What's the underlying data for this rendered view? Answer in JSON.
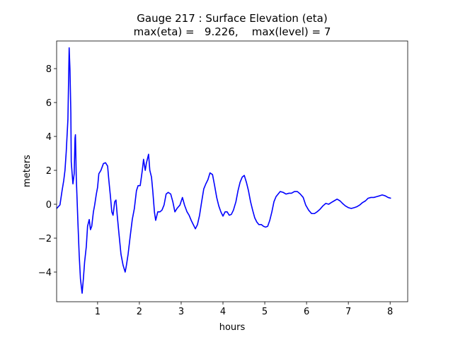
{
  "chart_data": {
    "type": "line",
    "title": "Gauge 217 : Surface Elevation (eta)",
    "subtitle": "max(eta) =   9.226,    max(level) = 7",
    "x_label": "hours",
    "y_label": "meters",
    "xlim": [
      0.02,
      8.42
    ],
    "ylim": [
      -5.75,
      9.63
    ],
    "xticks": [
      1,
      2,
      3,
      4,
      5,
      6,
      7,
      8
    ],
    "yticks": [
      {
        "value": -4,
        "label": "−4"
      },
      {
        "value": -2,
        "label": "−2"
      },
      0,
      2,
      4,
      6,
      8
    ],
    "grid": false,
    "series": [
      {
        "color": "#0000ff",
        "x": [
          0.02,
          0.1,
          0.15,
          0.19,
          0.22,
          0.25,
          0.29,
          0.32,
          0.34,
          0.36,
          0.37,
          0.41,
          0.44,
          0.46,
          0.47,
          0.49,
          0.53,
          0.56,
          0.59,
          0.63,
          0.66,
          0.69,
          0.73,
          0.76,
          0.8,
          0.83,
          0.86,
          0.9,
          0.93,
          0.97,
          1.0,
          1.03,
          1.08,
          1.14,
          1.19,
          1.24,
          1.27,
          1.31,
          1.34,
          1.37,
          1.41,
          1.44,
          1.47,
          1.51,
          1.56,
          1.61,
          1.66,
          1.69,
          1.73,
          1.78,
          1.83,
          1.88,
          1.93,
          1.97,
          2.02,
          2.07,
          2.1,
          2.14,
          2.17,
          2.22,
          2.25,
          2.29,
          2.32,
          2.36,
          2.39,
          2.44,
          2.49,
          2.54,
          2.59,
          2.64,
          2.69,
          2.75,
          2.8,
          2.85,
          2.9,
          2.97,
          3.03,
          3.08,
          3.14,
          3.19,
          3.24,
          3.29,
          3.34,
          3.39,
          3.44,
          3.49,
          3.54,
          3.59,
          3.64,
          3.69,
          3.75,
          3.8,
          3.85,
          3.9,
          3.95,
          4.0,
          4.05,
          4.1,
          4.15,
          4.2,
          4.25,
          4.31,
          4.36,
          4.41,
          4.46,
          4.51,
          4.56,
          4.61,
          4.66,
          4.71,
          4.76,
          4.81,
          4.86,
          4.92,
          4.97,
          5.02,
          5.07,
          5.12,
          5.17,
          5.22,
          5.27,
          5.32,
          5.37,
          5.44,
          5.51,
          5.58,
          5.64,
          5.71,
          5.78,
          5.85,
          5.92,
          5.98,
          6.05,
          6.12,
          6.19,
          6.25,
          6.32,
          6.39,
          6.46,
          6.53,
          6.59,
          6.66,
          6.73,
          6.8,
          6.86,
          6.93,
          7.0,
          7.07,
          7.14,
          7.2,
          7.27,
          7.34,
          7.41,
          7.47,
          7.54,
          7.61,
          7.68,
          7.75,
          7.81,
          7.88,
          7.95,
          8.02
        ],
        "values": [
          -0.25,
          -0.04,
          0.8,
          1.4,
          2.0,
          3.1,
          5.0,
          9.226,
          7.9,
          5.4,
          2.5,
          1.2,
          1.8,
          3.9,
          4.1,
          1.6,
          -1.1,
          -3.0,
          -4.4,
          -5.25,
          -4.4,
          -3.4,
          -2.5,
          -1.3,
          -0.9,
          -1.5,
          -1.3,
          -0.45,
          -0.05,
          0.6,
          1.0,
          1.8,
          2.0,
          2.4,
          2.45,
          2.25,
          1.4,
          0.4,
          -0.45,
          -0.65,
          0.15,
          0.25,
          -0.65,
          -1.7,
          -2.95,
          -3.6,
          -4.0,
          -3.6,
          -2.95,
          -1.9,
          -0.9,
          -0.25,
          0.8,
          1.1,
          1.1,
          2.0,
          2.65,
          2.0,
          2.45,
          2.95,
          2.0,
          1.6,
          0.8,
          -0.45,
          -0.95,
          -0.45,
          -0.45,
          -0.35,
          -0.05,
          0.6,
          0.7,
          0.6,
          0.15,
          -0.45,
          -0.25,
          -0.05,
          0.4,
          -0.05,
          -0.45,
          -0.65,
          -0.95,
          -1.2,
          -1.45,
          -1.2,
          -0.65,
          0.15,
          0.9,
          1.2,
          1.45,
          1.85,
          1.75,
          1.1,
          0.4,
          -0.1,
          -0.45,
          -0.7,
          -0.45,
          -0.45,
          -0.65,
          -0.6,
          -0.35,
          0.15,
          0.8,
          1.3,
          1.6,
          1.7,
          1.3,
          0.8,
          0.15,
          -0.35,
          -0.8,
          -1.05,
          -1.2,
          -1.2,
          -1.3,
          -1.35,
          -1.3,
          -0.95,
          -0.45,
          0.15,
          0.45,
          0.6,
          0.75,
          0.7,
          0.6,
          0.65,
          0.65,
          0.75,
          0.75,
          0.6,
          0.4,
          -0.05,
          -0.35,
          -0.55,
          -0.55,
          -0.45,
          -0.3,
          -0.1,
          0.05,
          0,
          0.1,
          0.2,
          0.3,
          0.2,
          0.05,
          -0.1,
          -0.2,
          -0.25,
          -0.2,
          -0.15,
          -0.05,
          0.1,
          0.2,
          0.35,
          0.4,
          0.4,
          0.45,
          0.5,
          0.55,
          0.5,
          0.4,
          0.35
        ]
      }
    ]
  }
}
